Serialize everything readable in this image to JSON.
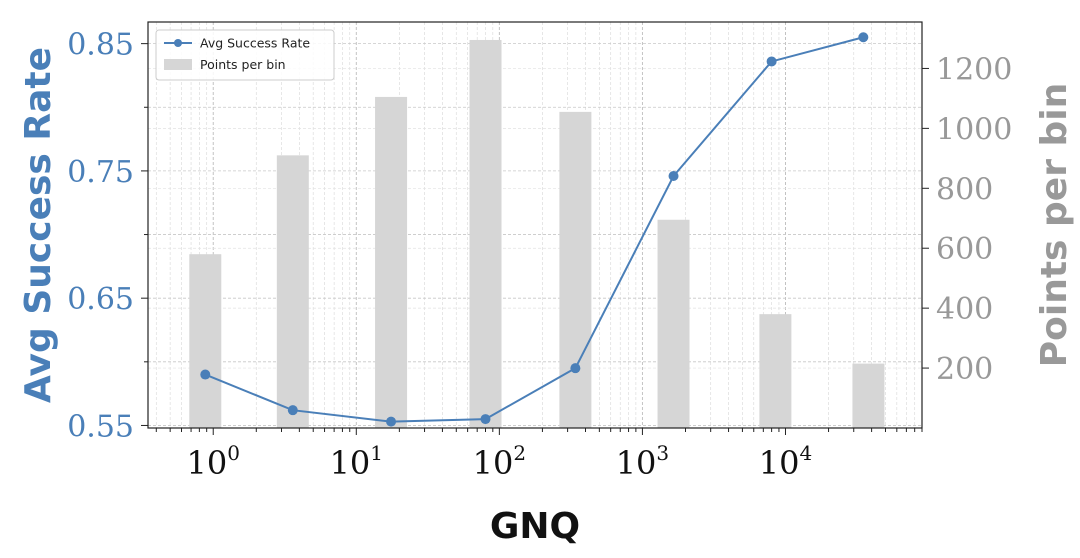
{
  "chart_data": {
    "type": "bar+line",
    "x_scale": "log",
    "xlim": [
      0.35,
      90000
    ],
    "xlabel": "GNQ",
    "x_ticks": [
      {
        "base": "10",
        "exp": "0",
        "value": 1
      },
      {
        "base": "10",
        "exp": "1",
        "value": 10
      },
      {
        "base": "10",
        "exp": "2",
        "value": 100
      },
      {
        "base": "10",
        "exp": "3",
        "value": 1000
      },
      {
        "base": "10",
        "exp": "4",
        "value": 10000
      }
    ],
    "y_left": {
      "label": "Avg Success Rate",
      "ylim": [
        0.548,
        0.867
      ],
      "ticks": [
        "0.55",
        "0.65",
        "0.75",
        "0.85"
      ],
      "color": "#4a7fb8"
    },
    "y_right": {
      "label": "Points per bin",
      "ylim": [
        0,
        1355
      ],
      "ticks": [
        "200",
        "400",
        "600",
        "800",
        "1000",
        "1200"
      ],
      "color": "#999999"
    },
    "bars": {
      "name": "Points per bin",
      "color": "#d6d6d6",
      "bins": [
        {
          "x": 0.88,
          "value": 580
        },
        {
          "x": 3.6,
          "value": 910
        },
        {
          "x": 17.5,
          "value": 1105
        },
        {
          "x": 80,
          "value": 1295
        },
        {
          "x": 340,
          "value": 1055
        },
        {
          "x": 1650,
          "value": 695
        },
        {
          "x": 8500,
          "value": 380
        },
        {
          "x": 38000,
          "value": 215
        }
      ]
    },
    "line": {
      "name": "Avg Success Rate",
      "color": "#4a7fb8",
      "points": [
        {
          "x": 0.88,
          "y": 0.59
        },
        {
          "x": 3.6,
          "y": 0.562
        },
        {
          "x": 17.5,
          "y": 0.553
        },
        {
          "x": 80,
          "y": 0.555
        },
        {
          "x": 340,
          "y": 0.595
        },
        {
          "x": 1650,
          "y": 0.746
        },
        {
          "x": 8000,
          "y": 0.836
        },
        {
          "x": 35000,
          "y": 0.855
        }
      ]
    },
    "grid": true,
    "legend": {
      "placement": "top-left",
      "entries": [
        {
          "label": "Avg Success Rate",
          "kind": "line"
        },
        {
          "label": "Points per bin",
          "kind": "bar"
        }
      ]
    }
  }
}
